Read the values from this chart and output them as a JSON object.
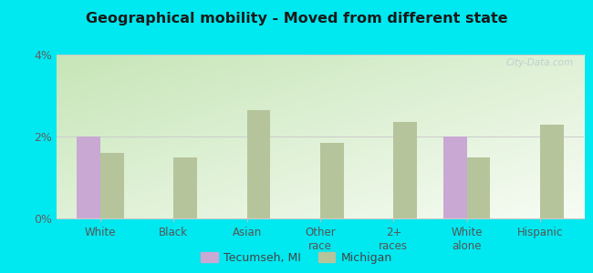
{
  "title": "Geographical mobility - Moved from different state",
  "categories": [
    "White",
    "Black",
    "Asian",
    "Other\nrace",
    "2+\nraces",
    "White\nalone",
    "Hispanic"
  ],
  "tecumseh_values": [
    2.0,
    0.0,
    0.0,
    0.0,
    0.0,
    2.0,
    0.0
  ],
  "michigan_values": [
    1.6,
    1.5,
    2.65,
    1.85,
    2.35,
    1.5,
    2.3
  ],
  "tecumseh_color": "#c9a8d4",
  "michigan_color": "#b5c49a",
  "ylim": [
    0,
    4.0
  ],
  "yticks": [
    0,
    2,
    4
  ],
  "ytick_labels": [
    "0%",
    "2%",
    "4%"
  ],
  "bar_width": 0.32,
  "outer_bg": "#00e8f0",
  "legend_tecumseh": "Tecumseh, MI",
  "legend_michigan": "Michigan",
  "watermark": "City-Data.com"
}
